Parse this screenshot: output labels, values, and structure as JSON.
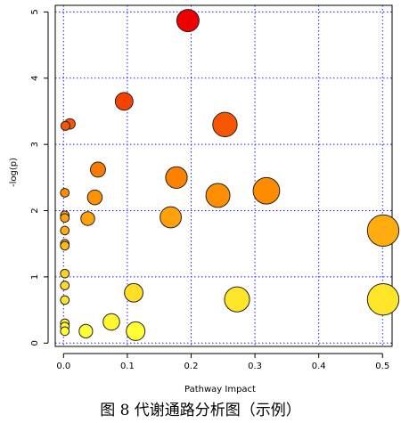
{
  "caption": "图 8 代谢通路分析图（示例）",
  "chart_data": {
    "type": "scatter",
    "title": "",
    "xlabel": "Pathway Impact",
    "ylabel": "-log(p)",
    "xlim": [
      -0.013,
      0.515
    ],
    "ylim": [
      -0.05,
      5.1
    ],
    "xticks": [
      0.0,
      0.1,
      0.2,
      0.3,
      0.4,
      0.5
    ],
    "xtick_labels": [
      "0.0",
      "0.1",
      "0.2",
      "0.3",
      "0.4",
      "0.5"
    ],
    "yticks": [
      0,
      1,
      2,
      3,
      4,
      5
    ],
    "ytick_labels": [
      "0",
      "1",
      "2",
      "3",
      "4",
      "5"
    ],
    "grid": true,
    "grid_style": "dotted",
    "grid_color": "#2020ff",
    "marker": "circle",
    "color_scale": {
      "low": "#ffff33",
      "mid": "#ff8c00",
      "high": "#ee0000",
      "by": "-log(p)"
    },
    "size_by": "Pathway Impact",
    "points": [
      {
        "x": 0.195,
        "y": 4.87
      },
      {
        "x": 0.095,
        "y": 3.65
      },
      {
        "x": 0.253,
        "y": 3.3
      },
      {
        "x": 0.01,
        "y": 3.31
      },
      {
        "x": 0.003,
        "y": 3.28
      },
      {
        "x": 0.054,
        "y": 2.62
      },
      {
        "x": 0.177,
        "y": 2.5
      },
      {
        "x": 0.318,
        "y": 2.3
      },
      {
        "x": 0.002,
        "y": 2.27
      },
      {
        "x": 0.049,
        "y": 2.2
      },
      {
        "x": 0.242,
        "y": 2.23
      },
      {
        "x": 0.002,
        "y": 1.93
      },
      {
        "x": 0.002,
        "y": 1.89
      },
      {
        "x": 0.038,
        "y": 1.88
      },
      {
        "x": 0.168,
        "y": 1.9
      },
      {
        "x": 0.002,
        "y": 1.7
      },
      {
        "x": 0.501,
        "y": 1.7
      },
      {
        "x": 0.002,
        "y": 1.5
      },
      {
        "x": 0.002,
        "y": 1.47
      },
      {
        "x": 0.002,
        "y": 1.05
      },
      {
        "x": 0.002,
        "y": 0.87
      },
      {
        "x": 0.002,
        "y": 0.65
      },
      {
        "x": 0.11,
        "y": 0.76
      },
      {
        "x": 0.272,
        "y": 0.66
      },
      {
        "x": 0.501,
        "y": 0.66
      },
      {
        "x": 0.002,
        "y": 0.3
      },
      {
        "x": 0.002,
        "y": 0.25
      },
      {
        "x": 0.075,
        "y": 0.32
      },
      {
        "x": 0.002,
        "y": 0.18
      },
      {
        "x": 0.035,
        "y": 0.18
      },
      {
        "x": 0.113,
        "y": 0.18
      }
    ]
  }
}
